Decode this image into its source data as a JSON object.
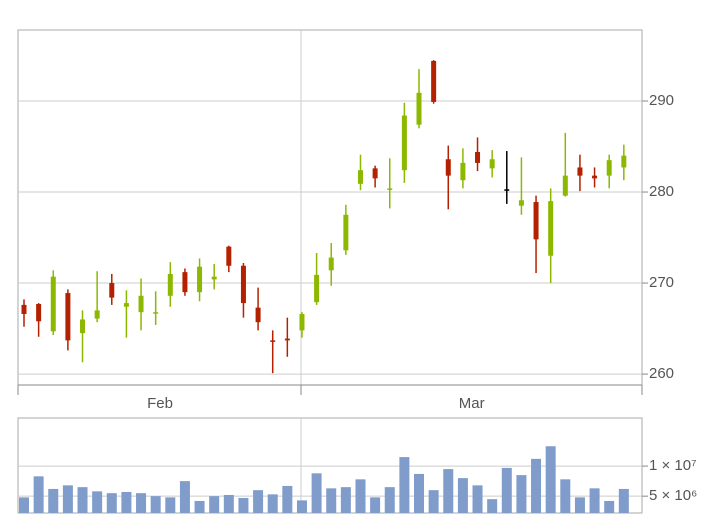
{
  "chart_data": [
    {
      "type": "candlestick",
      "up_color": "#8cb800",
      "down_color": "#b32100",
      "flat_color": "#000000",
      "open": [
        267.6,
        267.7,
        264.7,
        268.9,
        264.5,
        266.1,
        270,
        267.4,
        266.8,
        266.7,
        268.6,
        271.2,
        269,
        270.4,
        274,
        271.9,
        267.3,
        263.7,
        263.9,
        264.8,
        267.9,
        271.4,
        273.6,
        280.9,
        282.6,
        280.3,
        282.4,
        287.4,
        294.4,
        283.6,
        281.3,
        284.4,
        282.6,
        280.3,
        278.5,
        278.9,
        273,
        279.6,
        282.7,
        281.8,
        281.8,
        282.7
      ],
      "high": [
        268.2,
        267.8,
        271.4,
        269.3,
        267,
        271.3,
        271,
        269.2,
        270.5,
        269.1,
        272.3,
        271.6,
        272.7,
        272.1,
        274.1,
        272.2,
        269.5,
        264.8,
        266.2,
        266.8,
        273.3,
        274.4,
        278.6,
        284.1,
        282.9,
        283.7,
        289.8,
        293.5,
        294.5,
        285.1,
        284.8,
        286,
        284.6,
        284.5,
        283.8,
        279.6,
        280.4,
        286.5,
        284.1,
        282.7,
        284.1,
        285.2
      ],
      "low": [
        265.2,
        264.1,
        264.3,
        262.6,
        261.3,
        265.7,
        267.6,
        264,
        264.8,
        265.4,
        267.4,
        268.6,
        268,
        269.3,
        271.2,
        266.2,
        264.8,
        260.1,
        261.9,
        264,
        267.6,
        269.7,
        273.1,
        280.2,
        280.5,
        278.2,
        281,
        287,
        289.7,
        278.1,
        280.4,
        282.3,
        281.6,
        278.7,
        277.5,
        271.1,
        270,
        279.5,
        280.1,
        280.5,
        280.4,
        281.3
      ],
      "close": [
        266.6,
        265.8,
        270.7,
        263.7,
        266,
        267,
        268.4,
        267.8,
        268.6,
        266.8,
        271,
        269,
        271.8,
        270.7,
        271.9,
        267.8,
        265.7,
        263.6,
        263.7,
        266.6,
        270.9,
        272.8,
        277.5,
        282.4,
        281.5,
        280.4,
        288.4,
        290.9,
        289.9,
        281.8,
        283.2,
        283.2,
        283.6,
        280.3,
        279.1,
        274.8,
        279,
        281.8,
        281.8,
        281.5,
        283.5,
        284
      ],
      "xticks": [
        {
          "value": 9.3,
          "label": "Feb"
        },
        {
          "value": 30.6,
          "label": "Mar"
        }
      ],
      "ylim": [
        258.8,
        297.8
      ],
      "yticks": [
        260,
        270,
        280,
        290
      ],
      "grid": true
    },
    {
      "type": "bar",
      "color": "#7f9ccb",
      "values": [
        4800000,
        8300000,
        6200000,
        6800000,
        6500000,
        5800000,
        5500000,
        5700000,
        5500000,
        5000000,
        4800000,
        7500000,
        4200000,
        5000000,
        5200000,
        4700000,
        6000000,
        5300000,
        6700000,
        4300000,
        8800000,
        6300000,
        6500000,
        7800000,
        4800000,
        6500000,
        11500000,
        8700000,
        6000000,
        9500000,
        8000000,
        6800000,
        4500000,
        9700000,
        8500000,
        11200000,
        13300000,
        7800000,
        4800000,
        6300000,
        4200000,
        6200000
      ],
      "ylim": [
        2200000,
        18000000
      ],
      "yticks": [
        {
          "value": 5000000,
          "label": "5 × 10⁶"
        },
        {
          "value": 10000000,
          "label": "1 × 10⁷"
        }
      ],
      "grid": true
    }
  ]
}
